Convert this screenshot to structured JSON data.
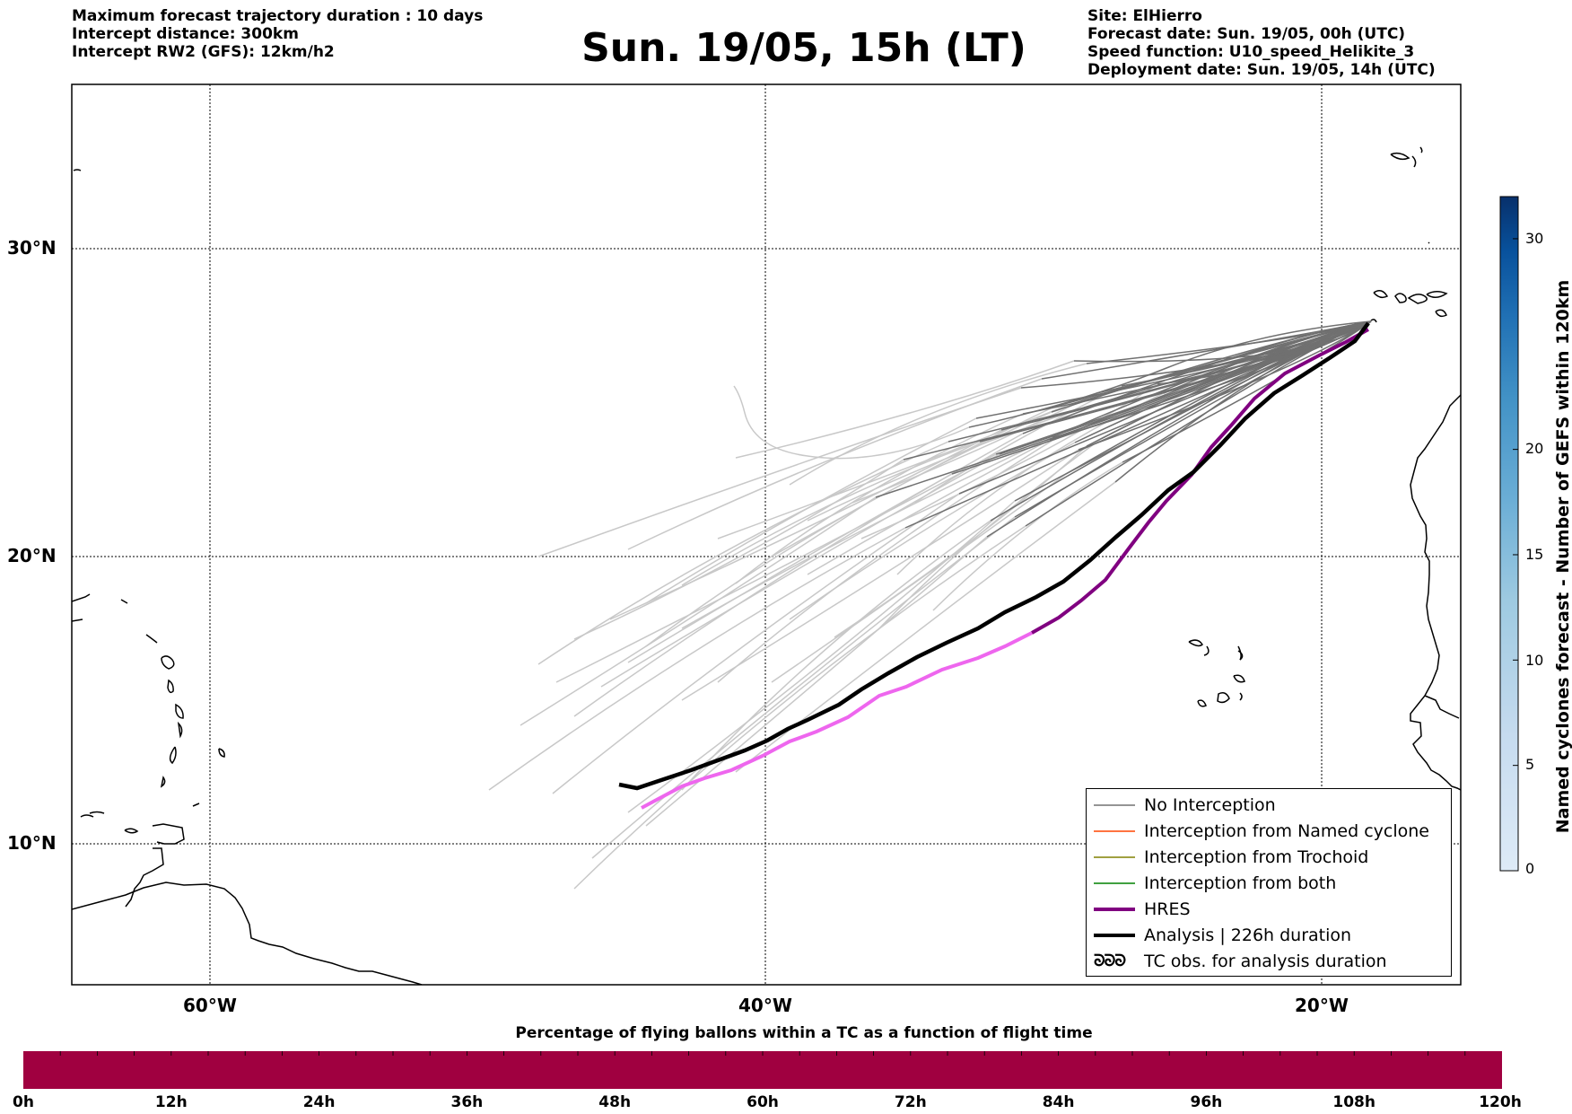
{
  "header": {
    "left_lines": [
      "Maximum forecast trajectory duration : 10 days",
      "Intercept distance: 300km",
      "Intercept RW2 (GFS):  12km/h2"
    ],
    "title": "Sun. 19/05, 15h (LT)",
    "right_lines": [
      "Site: ElHierro",
      "Forecast date: Sun. 19/05, 00h (UTC)",
      "Speed function: U10_speed_Helikite_3",
      "Deployment date: Sun. 19/05, 14h (UTC)"
    ]
  },
  "map": {
    "lon_range": [
      -65,
      15
    ],
    "lat_range": [
      5,
      35.3
    ],
    "lat_ticks": [
      "30°N",
      "20°N",
      "10°N"
    ],
    "lon_ticks": [
      "60°W",
      "40°W",
      "20°W"
    ],
    "origin_site": "ElHierro",
    "colors": {
      "no_interception": "#707070",
      "no_interception_late": "#c8c8c8",
      "named_cyclone": "#ff4500",
      "trochoid": "#808000",
      "both": "#008000",
      "hres": "#800080",
      "hres_late": "#ee66ee",
      "analysis": "#000000"
    }
  },
  "legend": {
    "items": [
      {
        "label": "No Interception",
        "color": "#707070",
        "style": "thin"
      },
      {
        "label": "Interception from Named cyclone",
        "color": "#ff4500",
        "style": "thin"
      },
      {
        "label": "Interception from Trochoid",
        "color": "#808000",
        "style": "thin"
      },
      {
        "label": "Interception from both",
        "color": "#008000",
        "style": "thin"
      },
      {
        "label": "HRES",
        "color": "#800080",
        "style": "thick"
      },
      {
        "label": "Analysis | 226h duration",
        "color": "#000000",
        "style": "thick"
      },
      {
        "label": "TC obs. for analysis duration",
        "color": "#000000",
        "style": "symbol",
        "symbol": "ᘐᘐᘐ"
      }
    ]
  },
  "colorbar": {
    "title": "Named cyclones forecast - Number of GEFS within 120km",
    "ticks": [
      "0",
      "5",
      "10",
      "15",
      "20",
      "30"
    ],
    "tick_values": [
      0,
      5,
      10,
      15,
      20,
      30
    ],
    "max": 32,
    "colors": [
      "#deebf7",
      "#c6dbef",
      "#9ecae1",
      "#6baed6",
      "#4292c6",
      "#2171b5",
      "#08519c",
      "#08306b"
    ]
  },
  "percentage_bar": {
    "title": "Percentage of flying ballons within a TC as a function of flight time",
    "fill_color": "#a00040",
    "hours": [
      "0h",
      "12h",
      "24h",
      "36h",
      "48h",
      "60h",
      "72h",
      "84h",
      "96h",
      "108h",
      "120h"
    ]
  }
}
